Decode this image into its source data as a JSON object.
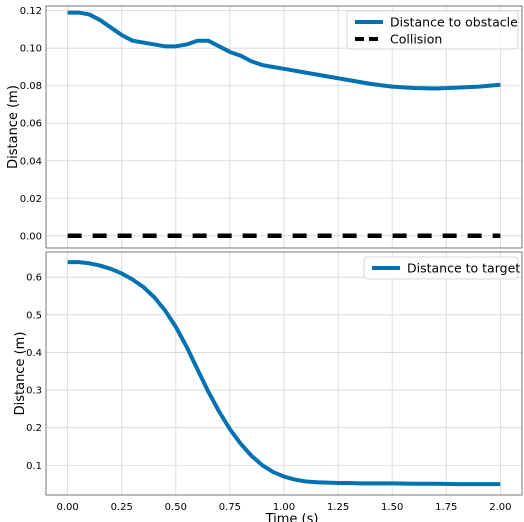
{
  "chart_data": [
    {
      "type": "line",
      "title": "",
      "xlabel": "",
      "ylabel": "Distance (m)",
      "xlim": [
        -0.1,
        2.1
      ],
      "ylim": [
        -0.0065,
        0.1225
      ],
      "xticks": [
        "0.00",
        "0.25",
        "0.50",
        "0.75",
        "1.00",
        "1.25",
        "1.50",
        "1.75",
        "2.00"
      ],
      "yticks": [
        "0.00",
        "0.02",
        "0.04",
        "0.06",
        "0.08",
        "0.10",
        "0.12"
      ],
      "grid": true,
      "legend_position": "top-right",
      "series": [
        {
          "name": "Distance to obstacle",
          "color": "#0072b2",
          "style": "solid",
          "x": [
            0.0,
            0.05,
            0.1,
            0.15,
            0.2,
            0.25,
            0.3,
            0.35,
            0.4,
            0.45,
            0.5,
            0.55,
            0.6,
            0.65,
            0.7,
            0.75,
            0.8,
            0.85,
            0.9,
            0.95,
            1.0,
            1.1,
            1.2,
            1.3,
            1.4,
            1.5,
            1.6,
            1.7,
            1.8,
            1.9,
            2.0
          ],
          "y": [
            0.119,
            0.119,
            0.118,
            0.115,
            0.111,
            0.107,
            0.104,
            0.103,
            0.102,
            0.101,
            0.101,
            0.102,
            0.104,
            0.104,
            0.101,
            0.098,
            0.096,
            0.093,
            0.091,
            0.09,
            0.089,
            0.087,
            0.085,
            0.083,
            0.081,
            0.0795,
            0.0788,
            0.0785,
            0.079,
            0.0795,
            0.0805
          ]
        },
        {
          "name": "Collision",
          "color": "#000000",
          "style": "dashed",
          "x": [
            0.0,
            2.0
          ],
          "y": [
            0.0,
            0.0
          ]
        }
      ]
    },
    {
      "type": "line",
      "title": "",
      "xlabel": "Time (s)",
      "ylabel": "Distance (m)",
      "xlim": [
        -0.1,
        2.1
      ],
      "ylim": [
        0.021,
        0.667
      ],
      "xticks": [
        "0.00",
        "0.25",
        "0.50",
        "0.75",
        "1.00",
        "1.25",
        "1.50",
        "1.75",
        "2.00"
      ],
      "yticks": [
        "0.1",
        "0.2",
        "0.3",
        "0.4",
        "0.5",
        "0.6"
      ],
      "grid": true,
      "legend_position": "top-right",
      "series": [
        {
          "name": "Distance to target",
          "color": "#0072b2",
          "style": "solid",
          "x": [
            0.0,
            0.05,
            0.1,
            0.15,
            0.2,
            0.25,
            0.3,
            0.35,
            0.4,
            0.45,
            0.5,
            0.55,
            0.6,
            0.65,
            0.7,
            0.75,
            0.8,
            0.85,
            0.9,
            0.95,
            1.0,
            1.05,
            1.1,
            1.15,
            1.2,
            1.25,
            1.3,
            1.35,
            1.4,
            1.5,
            1.6,
            1.7,
            1.8,
            1.9,
            2.0
          ],
          "y": [
            0.64,
            0.64,
            0.637,
            0.631,
            0.622,
            0.61,
            0.594,
            0.574,
            0.547,
            0.512,
            0.468,
            0.415,
            0.355,
            0.296,
            0.243,
            0.196,
            0.157,
            0.125,
            0.1,
            0.082,
            0.07,
            0.062,
            0.057,
            0.055,
            0.054,
            0.053,
            0.053,
            0.052,
            0.052,
            0.052,
            0.051,
            0.051,
            0.05,
            0.05,
            0.05
          ]
        }
      ]
    }
  ]
}
